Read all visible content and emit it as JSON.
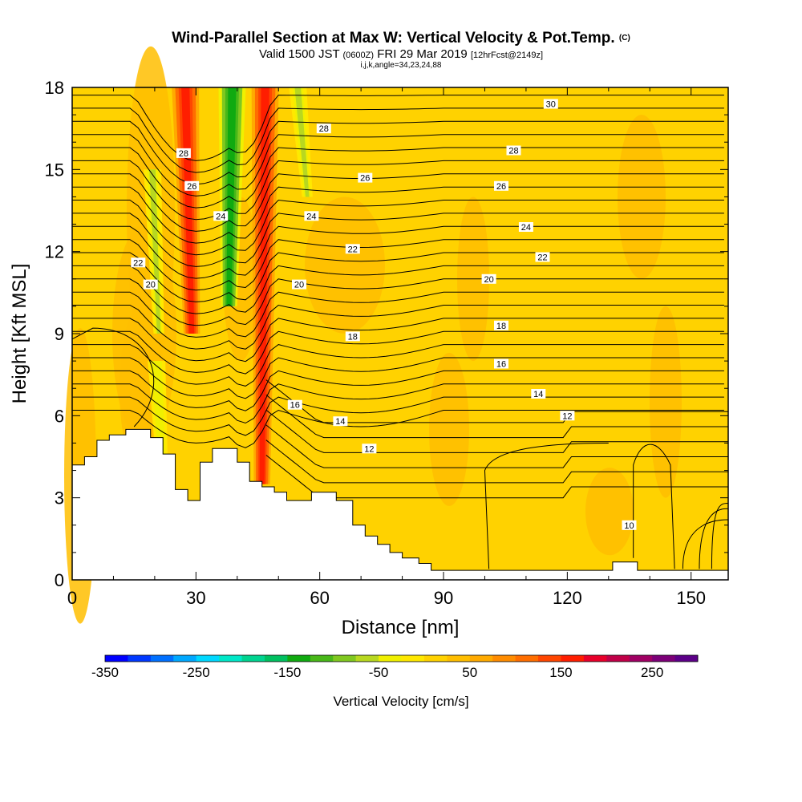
{
  "title": {
    "main": "Wind-Parallel Section at Max W: Vertical Velocity & Pot.Temp.",
    "copyright": "(C)",
    "valid_prefix": "Valid 1500 JST",
    "valid_utc": "(0600Z)",
    "valid_date": "FRI 29 Mar 2019",
    "forecast": "[12hrFcst@2149z]",
    "params": "i,j,k,angle=34,23,24,88"
  },
  "chart_data": {
    "type": "heatmap",
    "xlabel": "Distance [nm]",
    "ylabel": "Height [Kft MSL]",
    "xlim": [
      0,
      159
    ],
    "ylim": [
      0,
      18
    ],
    "x_ticks": [
      0,
      30,
      60,
      90,
      120,
      150
    ],
    "y_ticks": [
      0,
      3,
      6,
      9,
      12,
      15,
      18
    ],
    "colorbar": {
      "label": "Vertical Velocity [cm/s]",
      "range": [
        -350,
        275
      ],
      "step": 25,
      "tick_labels": [
        -350,
        -250,
        -150,
        -50,
        50,
        150,
        250
      ],
      "colors": [
        "#0000ff",
        "#0038ff",
        "#0070ff",
        "#00a8ff",
        "#00d8ff",
        "#00e8c8",
        "#00d490",
        "#00c060",
        "#10aa10",
        "#48b818",
        "#80c820",
        "#b8d820",
        "#f0f000",
        "#ffe800",
        "#ffd200",
        "#ffbe00",
        "#ffaa00",
        "#ff8c00",
        "#ff6e00",
        "#ff4600",
        "#ff1e00",
        "#e8002a",
        "#c00048",
        "#a00064",
        "#7c0078",
        "#5c0088"
      ]
    },
    "velocity_features": [
      {
        "x": 29,
        "zmin": 9,
        "zmax": 18,
        "w": 150
      },
      {
        "x": 38,
        "zmin": 10,
        "zmax": 18,
        "w": -150
      },
      {
        "x": 46,
        "zmin": 3.5,
        "zmax": 18,
        "w": 150
      },
      {
        "x": 57,
        "zmin": 14,
        "zmax": 18,
        "w": -75
      },
      {
        "x": 21,
        "zmin": 9,
        "zmax": 15,
        "w": -75
      },
      {
        "x": 22,
        "zmin": 3.5,
        "zmax": 8,
        "w": -50
      }
    ],
    "terrain_profile": {
      "x": [
        0,
        3,
        3,
        6,
        6,
        9,
        9,
        13,
        13,
        19,
        19,
        22,
        22,
        25,
        25,
        28,
        28,
        31,
        31,
        34,
        34,
        40,
        40,
        43,
        43,
        46,
        46,
        49,
        49,
        52,
        52,
        58,
        58,
        64,
        64,
        68,
        68,
        71,
        71,
        74,
        74,
        77,
        77,
        80,
        80,
        84,
        84,
        87,
        87,
        131,
        131,
        137,
        137,
        159
      ],
      "z": [
        4.2,
        4.2,
        4.5,
        4.5,
        5.1,
        5.1,
        5.3,
        5.3,
        5.5,
        5.5,
        5.2,
        5.2,
        4.6,
        4.6,
        3.3,
        3.3,
        2.9,
        2.9,
        4.3,
        4.3,
        4.8,
        4.8,
        4.3,
        4.3,
        3.6,
        3.6,
        3.4,
        3.4,
        3.2,
        3.2,
        2.9,
        2.9,
        3.2,
        3.2,
        2.9,
        2.9,
        2.0,
        2.0,
        1.6,
        1.6,
        1.3,
        1.3,
        1.0,
        1.0,
        0.8,
        0.8,
        0.6,
        0.6,
        0.35,
        0.35,
        0.65,
        0.65,
        0.35,
        0.35
      ]
    },
    "theta_contours": {
      "levels": [
        10,
        12,
        14,
        16,
        18,
        20,
        22,
        24,
        26,
        28,
        30
      ],
      "labels": [
        {
          "text": "30",
          "x": 116,
          "y": 17.4
        },
        {
          "text": "28",
          "x": 61,
          "y": 16.5
        },
        {
          "text": "28",
          "x": 107,
          "y": 15.7
        },
        {
          "text": "28",
          "x": 27,
          "y": 15.6
        },
        {
          "text": "26",
          "x": 71,
          "y": 14.7
        },
        {
          "text": "26",
          "x": 104,
          "y": 14.4
        },
        {
          "text": "26",
          "x": 29,
          "y": 14.4
        },
        {
          "text": "24",
          "x": 58,
          "y": 13.3
        },
        {
          "text": "24",
          "x": 110,
          "y": 12.9
        },
        {
          "text": "24",
          "x": 36,
          "y": 13.3
        },
        {
          "text": "22",
          "x": 68,
          "y": 12.1
        },
        {
          "text": "22",
          "x": 114,
          "y": 11.8
        },
        {
          "text": "22",
          "x": 16,
          "y": 11.6
        },
        {
          "text": "20",
          "x": 55,
          "y": 10.8
        },
        {
          "text": "20",
          "x": 101,
          "y": 11.0
        },
        {
          "text": "20",
          "x": 19,
          "y": 10.8
        },
        {
          "text": "18",
          "x": 68,
          "y": 8.9
        },
        {
          "text": "18",
          "x": 104,
          "y": 9.3
        },
        {
          "text": "16",
          "x": 54,
          "y": 6.4
        },
        {
          "text": "16",
          "x": 104,
          "y": 7.9
        },
        {
          "text": "14",
          "x": 65,
          "y": 5.8
        },
        {
          "text": "14",
          "x": 113,
          "y": 6.8
        },
        {
          "text": "12",
          "x": 72,
          "y": 4.8
        },
        {
          "text": "12",
          "x": 120,
          "y": 6.0
        },
        {
          "text": "10",
          "x": 135,
          "y": 2.0
        }
      ]
    }
  }
}
